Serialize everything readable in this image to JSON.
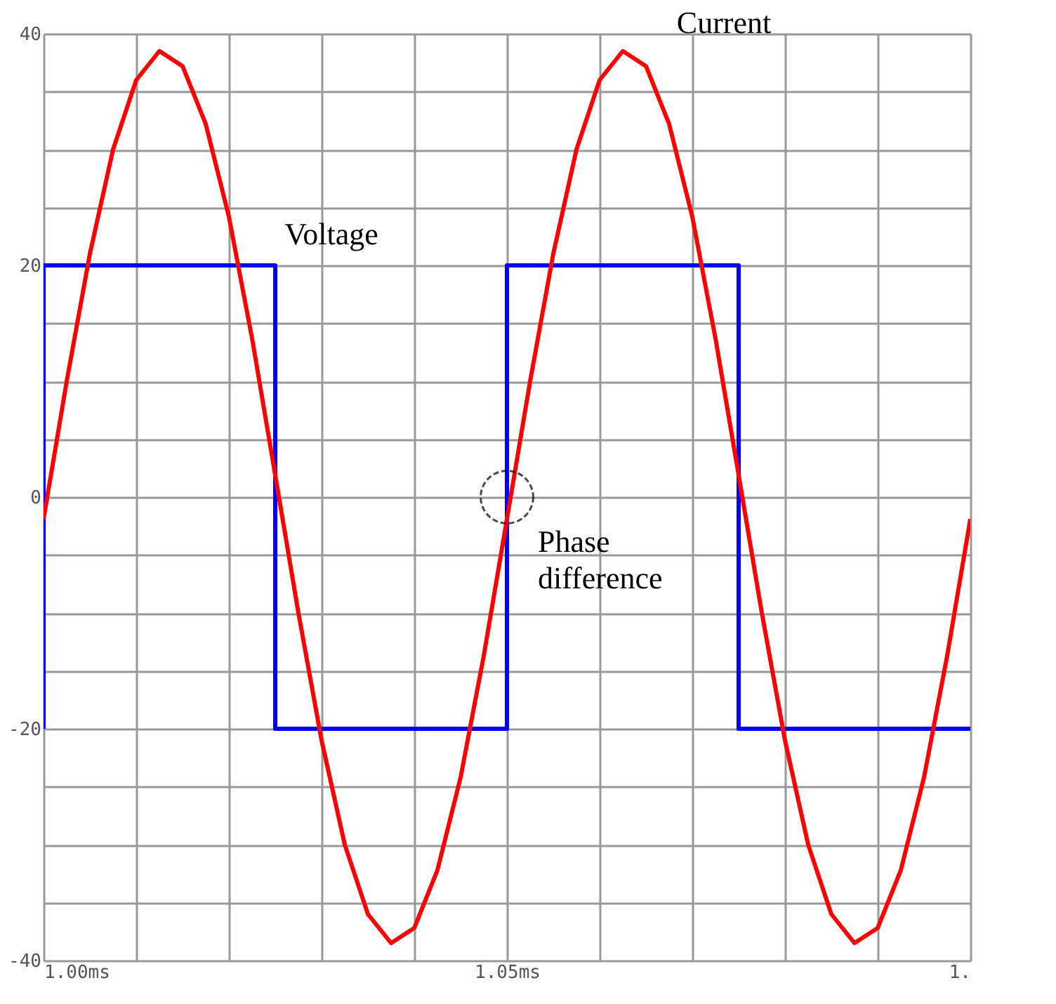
{
  "chart_data": {
    "type": "line",
    "xlim": [
      1.0,
      1.1
    ],
    "xticks": [
      {
        "value": 1.0,
        "label": "1.00ms"
      },
      {
        "value": 1.01,
        "label": null
      },
      {
        "value": 1.02,
        "label": null
      },
      {
        "value": 1.03,
        "label": null
      },
      {
        "value": 1.04,
        "label": null
      },
      {
        "value": 1.05,
        "label": "1.05ms"
      },
      {
        "value": 1.06,
        "label": null
      },
      {
        "value": 1.07,
        "label": null
      },
      {
        "value": 1.08,
        "label": null
      },
      {
        "value": 1.09,
        "label": null
      },
      {
        "value": 1.1,
        "label": "1."
      }
    ],
    "ylim": [
      -40,
      40
    ],
    "yticks": [
      -40,
      {
        "value": -35,
        "label": null
      },
      {
        "value": -30,
        "label": null
      },
      {
        "value": -25,
        "label": null
      },
      -20,
      {
        "value": -15,
        "label": null
      },
      {
        "value": -10,
        "label": null
      },
      {
        "value": -5,
        "label": null
      },
      0,
      {
        "value": 5,
        "label": null
      },
      {
        "value": 10,
        "label": null
      },
      {
        "value": 15,
        "label": null
      },
      20,
      {
        "value": 25,
        "label": null
      },
      {
        "value": 30,
        "label": null
      },
      {
        "value": 35,
        "label": null
      },
      40
    ],
    "grid": true,
    "legend": false,
    "marker": "none",
    "line_style": "solid",
    "series": [
      {
        "name": "Voltage",
        "color": "#0000ff",
        "x": [
          1.0,
          1.0,
          1.025,
          1.025,
          1.05,
          1.05,
          1.075,
          1.075,
          1.1
        ],
        "values": [
          -20,
          20,
          20,
          -20,
          -20,
          20,
          20,
          -20,
          -20
        ]
      },
      {
        "name": "Current",
        "color": "#ff0000",
        "x": [
          1.0,
          1.0025,
          1.005,
          1.0075,
          1.01,
          1.0125,
          1.015,
          1.0175,
          1.02,
          1.0225,
          1.025,
          1.0275,
          1.03,
          1.0325,
          1.035,
          1.0375,
          1.04,
          1.0425,
          1.045,
          1.0475,
          1.05,
          1.0525,
          1.055,
          1.0575,
          1.06,
          1.0625,
          1.065,
          1.0675,
          1.07,
          1.0725,
          1.075,
          1.0775,
          1.08,
          1.0825,
          1.085,
          1.0875,
          1.09,
          1.0925,
          1.095,
          1.0975,
          1.1
        ],
        "values": [
          -1.9,
          10.0,
          21.0,
          30.0,
          36.0,
          38.5,
          37.2,
          32.2,
          24.2,
          13.7,
          1.9,
          -10.0,
          -21.0,
          -30.0,
          -36.0,
          -38.5,
          -37.2,
          -32.2,
          -24.2,
          -13.7,
          -1.9,
          10.0,
          21.0,
          30.0,
          36.0,
          38.5,
          37.2,
          32.2,
          24.2,
          13.7,
          1.9,
          -10.0,
          -21.0,
          -30.0,
          -36.0,
          -38.5,
          -37.2,
          -32.2,
          -24.2,
          -13.7,
          -1.9
        ]
      }
    ],
    "annotations": [
      {
        "text": "Phase\ndifference",
        "x": 1.05,
        "y": 0
      }
    ]
  }
}
